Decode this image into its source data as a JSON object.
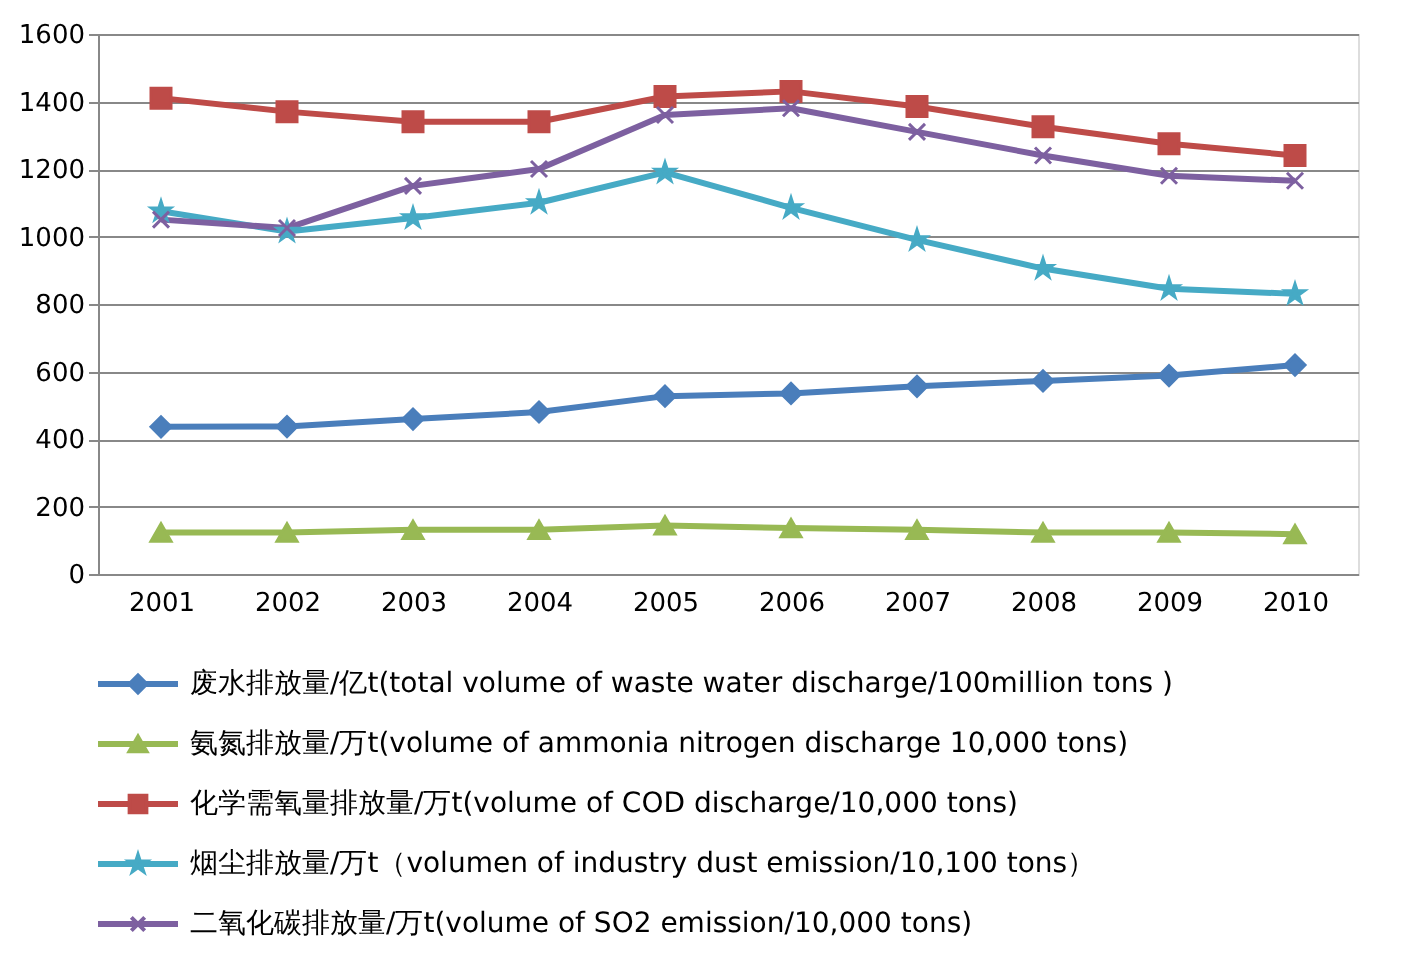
{
  "chart_data": {
    "type": "line",
    "categories": [
      "2001",
      "2002",
      "2003",
      "2004",
      "2005",
      "2006",
      "2007",
      "2008",
      "2009",
      "2010"
    ],
    "series": [
      {
        "name": "废水排放量/亿t(total  volume of waste water discharge/100million tons )",
        "color": "#4a7ebb",
        "marker": "diamond",
        "values": [
          436,
          437,
          459,
          480,
          527,
          535,
          556,
          572,
          588,
          619
        ]
      },
      {
        "name": "氨氮排放量/万t(volume  of ammonia nitrogen discharge 10,000 tons)",
        "color": "#98b954",
        "marker": "triangle",
        "values": [
          123,
          123,
          131,
          131,
          144,
          136,
          131,
          123,
          123,
          118
        ]
      },
      {
        "name": "化学需氧量排放量/万t(volume  of COD discharge/10,000 tons)",
        "color": "#be4b48",
        "marker": "square",
        "values": [
          1410,
          1370,
          1340,
          1340,
          1415,
          1430,
          1385,
          1325,
          1275,
          1240
        ]
      },
      {
        "name": "烟尘排放量/万t（volumen  of industry dust emission/10,100 tons）",
        "color": "#46aac5",
        "marker": "star",
        "values": [
          1075,
          1015,
          1055,
          1100,
          1190,
          1085,
          990,
          905,
          845,
          830
        ]
      },
      {
        "name": "二氧化碳排放量/万t(volume  of SO2 emission/10,000 tons)",
        "color": "#7d60a0",
        "marker": "cross",
        "values": [
          1050,
          1025,
          1150,
          1200,
          1360,
          1380,
          1310,
          1240,
          1180,
          1165
        ]
      }
    ],
    "ylim": [
      0,
      1600
    ],
    "yticks": [
      0,
      200,
      400,
      600,
      800,
      1000,
      1200,
      1400,
      1600
    ],
    "grid": "y",
    "legend": "bottom",
    "line_style": "solid"
  }
}
